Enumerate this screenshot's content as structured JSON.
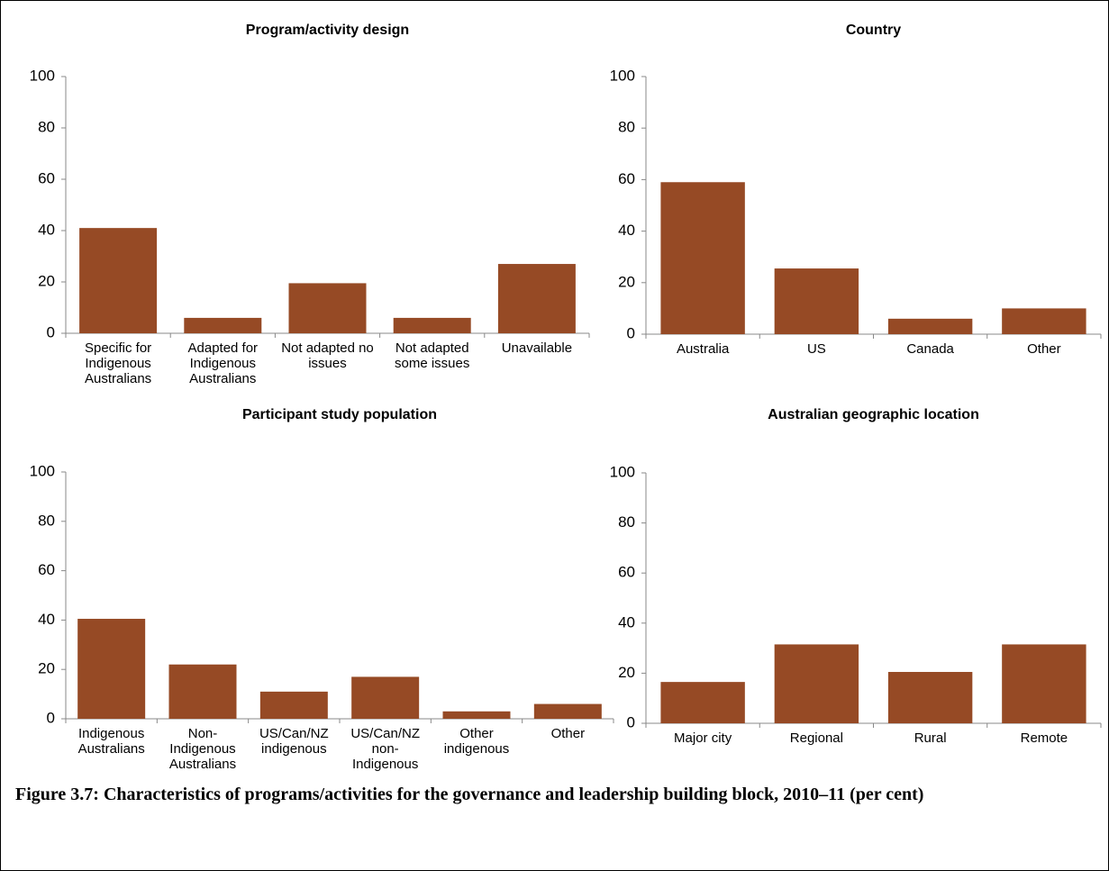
{
  "chart_data": [
    {
      "type": "bar",
      "title": "Program/activity design",
      "categories": [
        "Specific for Indigenous Australians",
        "Adapted for Indigenous Australians",
        "Not adapted no issues",
        "Not adapted some issues",
        "Unavailable"
      ],
      "values": [
        41,
        6,
        19.5,
        6,
        27
      ],
      "color": "#964a25",
      "ylim": [
        0,
        100
      ],
      "yticks": [
        0,
        20,
        40,
        60,
        80,
        100
      ]
    },
    {
      "type": "bar",
      "title": "Country",
      "categories": [
        "Australia",
        "US",
        "Canada",
        "Other"
      ],
      "values": [
        59,
        25.5,
        6,
        10
      ],
      "color": "#964a25",
      "ylim": [
        0,
        100
      ],
      "yticks": [
        0,
        20,
        40,
        60,
        80,
        100
      ]
    },
    {
      "type": "bar",
      "title": "Participant study population",
      "categories": [
        "Indigenous Australians",
        "Non-Indigenous Australians",
        "US/Can/NZ indigenous",
        "US/Can/NZ non-Indigenous",
        "Other indigenous",
        "Other"
      ],
      "values": [
        40.5,
        22,
        11,
        17,
        3,
        6
      ],
      "color": "#964a25",
      "ylim": [
        0,
        100
      ],
      "yticks": [
        0,
        20,
        40,
        60,
        80,
        100
      ]
    },
    {
      "type": "bar",
      "title": "Australian geographic location",
      "categories": [
        "Major city",
        "Regional",
        "Rural",
        "Remote"
      ],
      "values": [
        16.5,
        31.5,
        20.5,
        31.5
      ],
      "color": "#964a25",
      "ylim": [
        0,
        100
      ],
      "yticks": [
        0,
        20,
        40,
        60,
        80,
        100
      ]
    }
  ],
  "caption": "Figure 3.7: Characteristics of programs/activities for the governance and leadership building block, 2010–11 (per cent)"
}
